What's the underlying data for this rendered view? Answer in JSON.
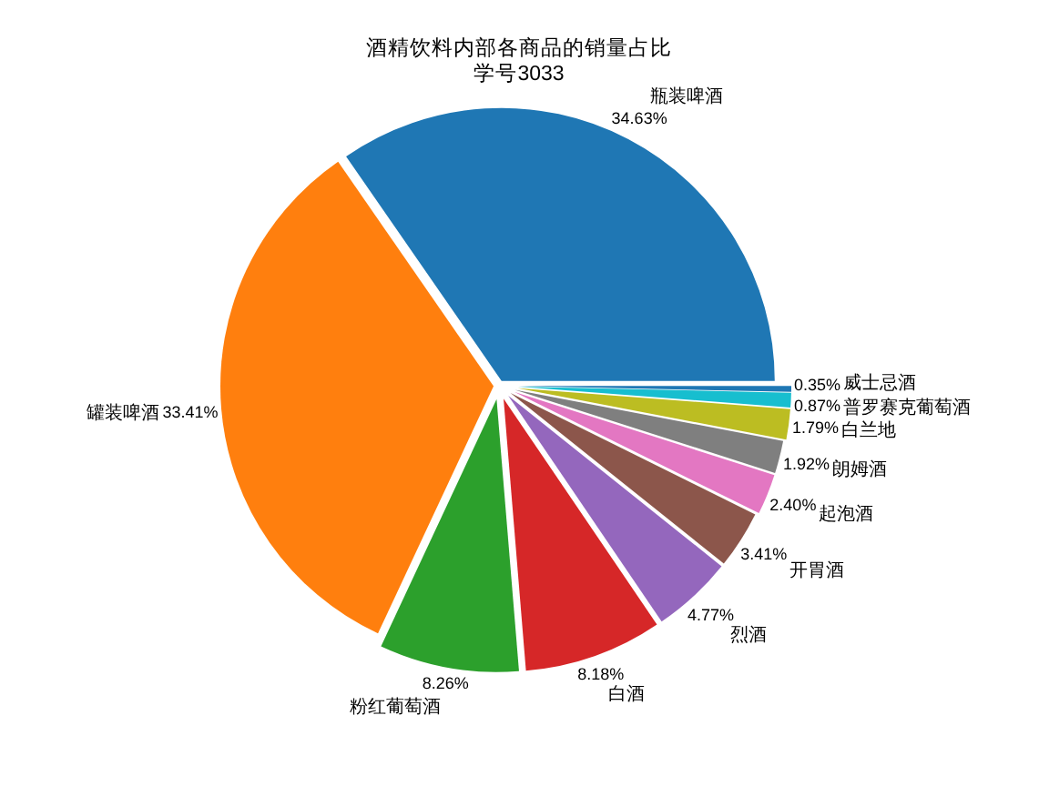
{
  "chart_data": {
    "type": "pie",
    "title": "酒精饮料内部各商品的销量占比",
    "subtitle": "学号3033",
    "categories": [
      "瓶装啤酒",
      "罐装啤酒",
      "粉红葡萄酒",
      "白酒",
      "烈酒",
      "开胃酒",
      "起泡酒",
      "朗姆酒",
      "白兰地",
      "普罗赛克葡萄酒",
      "威士忌酒"
    ],
    "values": [
      34.63,
      33.41,
      8.26,
      8.18,
      4.77,
      3.41,
      2.4,
      1.92,
      1.79,
      0.87,
      0.35
    ],
    "value_labels": [
      "34.63%",
      "33.41%",
      "8.26%",
      "8.18%",
      "4.77%",
      "3.41%",
      "2.40%",
      "1.92%",
      "1.79%",
      "0.87%",
      "0.35%"
    ],
    "colors": [
      "#1f77b4",
      "#ff7f0e",
      "#2ca02c",
      "#d62728",
      "#9467bd",
      "#8c564b",
      "#e377c2",
      "#7f7f7f",
      "#bcbd22",
      "#17becf",
      "#1f77b4"
    ]
  }
}
